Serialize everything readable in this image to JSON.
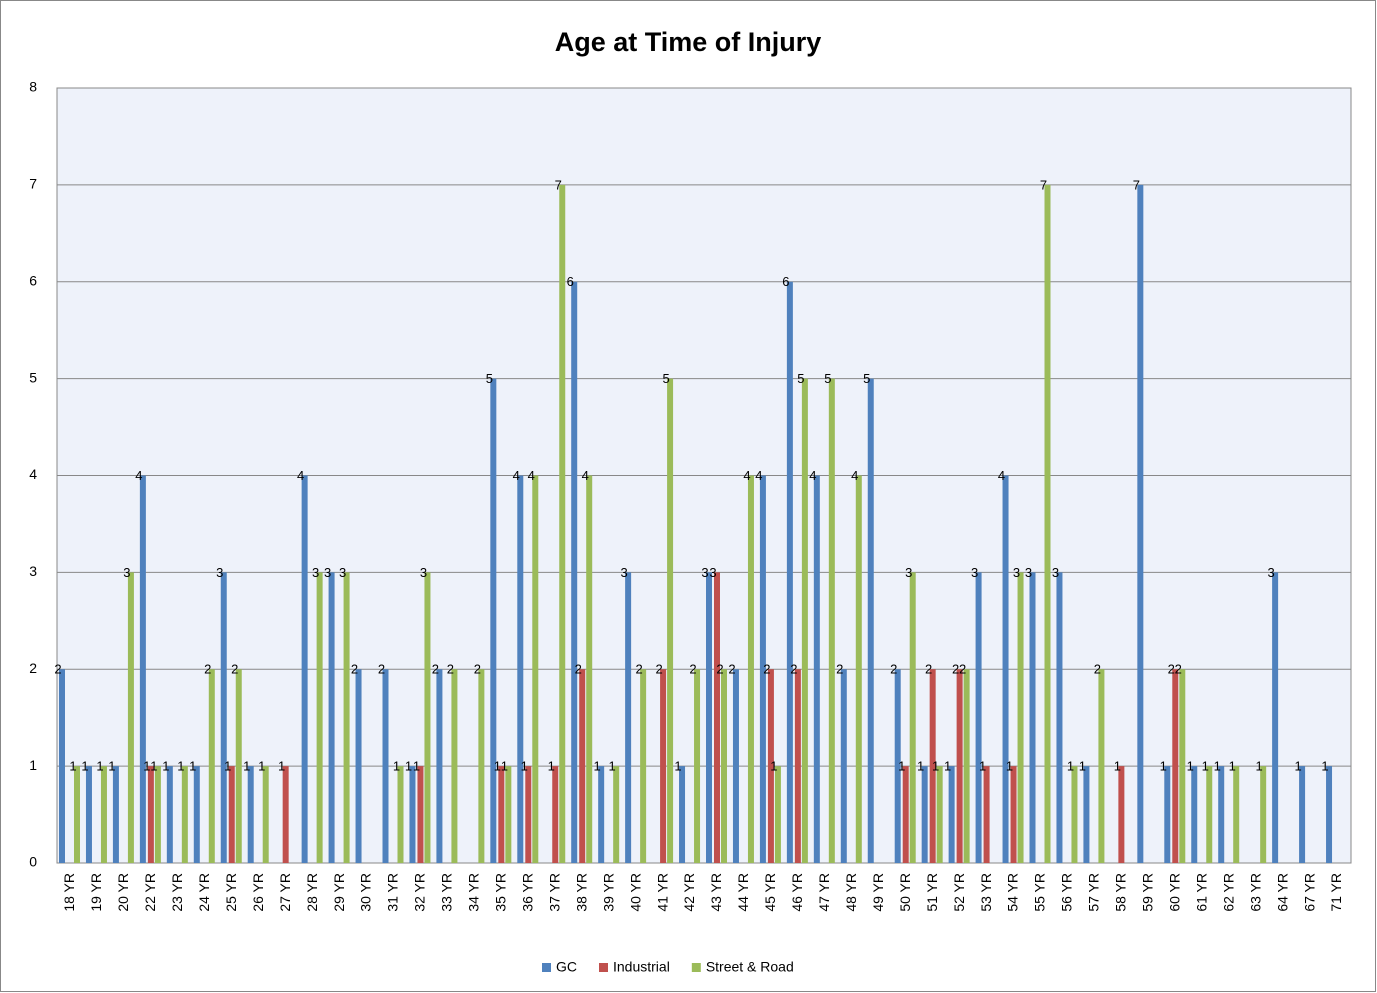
{
  "chart_data": {
    "type": "bar",
    "title": "Age at Time of Injury",
    "categories": [
      "18 YR",
      "19 YR",
      "20 YR",
      "22 YR",
      "23 YR",
      "24 YR",
      "25 YR",
      "26 YR",
      "27 YR",
      "28 YR",
      "29 YR",
      "30 YR",
      "31 YR",
      "32 YR",
      "33 YR",
      "34 YR",
      "35 YR",
      "36 YR",
      "37 YR",
      "38 YR",
      "39 YR",
      "40 YR",
      "41 YR",
      "42 YR",
      "43 YR",
      "44 YR",
      "45 YR",
      "46 YR",
      "47 YR",
      "48 YR",
      "49 YR",
      "50 YR",
      "51 YR",
      "52 YR",
      "53 YR",
      "54 YR",
      "55 YR",
      "56 YR",
      "57 YR",
      "58 YR",
      "59 YR",
      "60 YR",
      "61 YR",
      "62 YR",
      "63 YR",
      "64 YR",
      "67 YR",
      "71 YR"
    ],
    "series": [
      {
        "name": "GC",
        "color": "#4f81bd",
        "values": [
          2,
          1,
          1,
          4,
          1,
          1,
          3,
          1,
          0,
          4,
          3,
          2,
          2,
          1,
          2,
          0,
          5,
          4,
          0,
          6,
          1,
          3,
          0,
          1,
          3,
          2,
          4,
          6,
          4,
          2,
          5,
          2,
          1,
          1,
          3,
          4,
          3,
          3,
          1,
          0,
          7,
          1,
          1,
          1,
          0,
          3,
          1,
          1
        ]
      },
      {
        "name": "Industrial",
        "color": "#c0504d",
        "values": [
          0,
          0,
          0,
          1,
          0,
          0,
          1,
          0,
          1,
          0,
          0,
          0,
          0,
          1,
          0,
          0,
          1,
          1,
          1,
          2,
          0,
          0,
          2,
          0,
          3,
          0,
          2,
          2,
          0,
          0,
          0,
          1,
          2,
          2,
          1,
          1,
          0,
          0,
          0,
          1,
          0,
          2,
          0,
          0,
          0,
          0,
          0,
          0
        ]
      },
      {
        "name": "Street & Road",
        "color": "#9bbb59",
        "values": [
          1,
          1,
          3,
          1,
          1,
          2,
          2,
          1,
          0,
          3,
          3,
          0,
          1,
          3,
          2,
          2,
          1,
          4,
          7,
          4,
          1,
          2,
          5,
          2,
          2,
          4,
          1,
          5,
          5,
          4,
          0,
          3,
          1,
          2,
          0,
          3,
          7,
          1,
          2,
          0,
          0,
          2,
          1,
          1,
          1,
          0,
          0,
          0
        ]
      }
    ],
    "ylim": [
      0,
      8
    ],
    "yticks": [
      0,
      1,
      2,
      3,
      4,
      5,
      6,
      7,
      8
    ],
    "grid": true,
    "legend": "bottom"
  }
}
